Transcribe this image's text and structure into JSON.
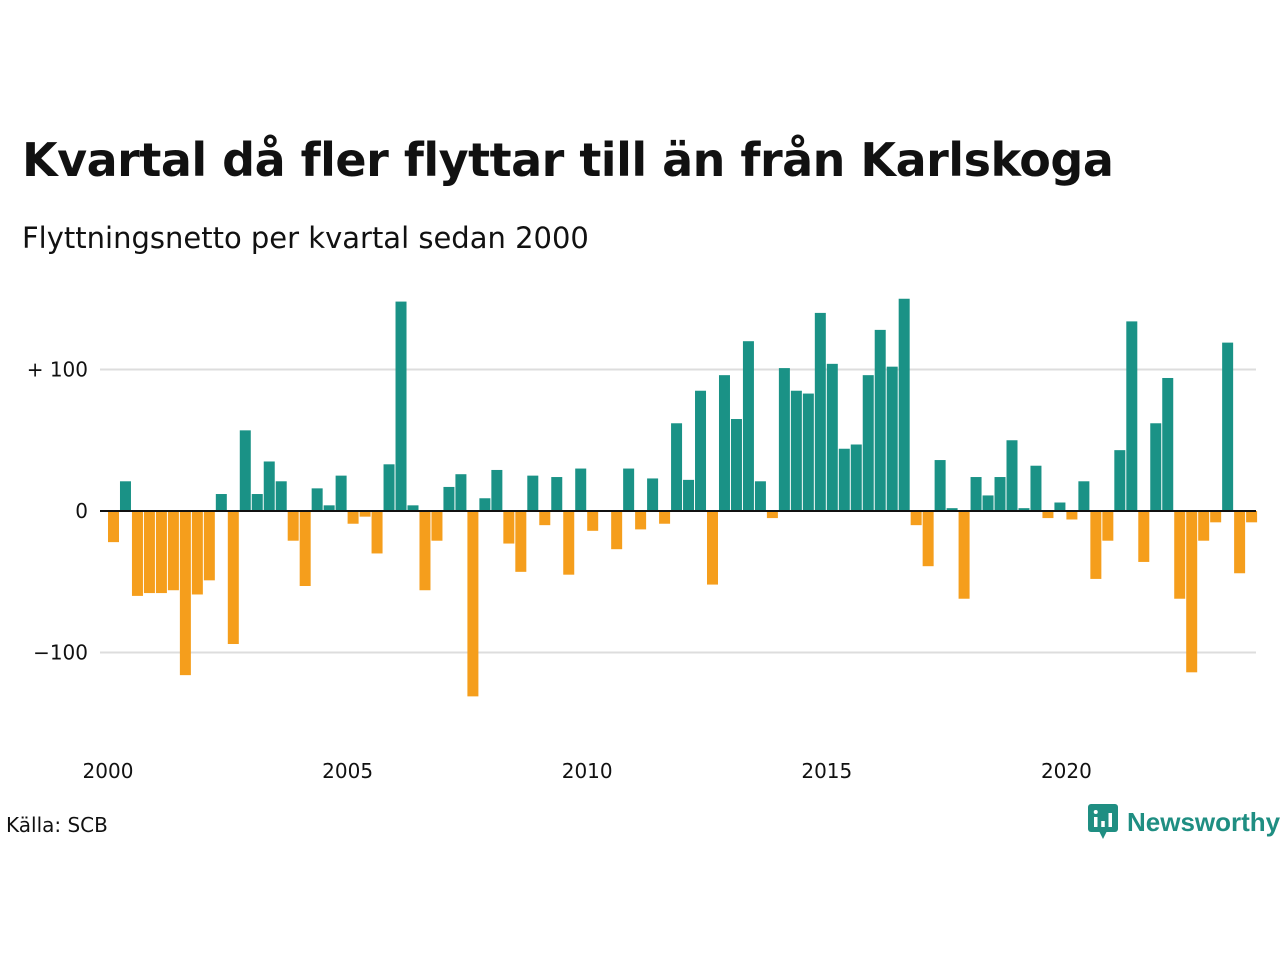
{
  "title": "Kvartal då fler flyttar till än från Karlskoga",
  "subtitle": "Flyttningsnetto per kvartal sedan 2000",
  "source": "Källa: SCB",
  "brand": {
    "name": "Newsworthy",
    "logo_icon": "newsworthy-bar-chart-speech-bubble-icon"
  },
  "colors": {
    "positive": "#1a9286",
    "negative": "#f59e1c",
    "grid": "#dddddd",
    "zero_line": "#111111",
    "brand": "#1f8e82"
  },
  "chart_data": {
    "type": "bar",
    "title": "Kvartal då fler flyttar till än från Karlskoga",
    "subtitle": "Flyttningsnetto per kvartal sedan 2000",
    "xlabel": "",
    "ylabel": "",
    "x_tick_labels": [
      "2000",
      "2005",
      "2010",
      "2015",
      "2020"
    ],
    "y_ticks": [
      {
        "value": 100,
        "label": "+ 100"
      },
      {
        "value": 0,
        "label": "0"
      },
      {
        "value": -100,
        "label": "−100"
      }
    ],
    "ylim": [
      -155,
      150
    ],
    "grid": true,
    "legend": "none",
    "start": "2000 Q1",
    "categories": [
      "2000 Q1",
      "2000 Q2",
      "2000 Q3",
      "2000 Q4",
      "2001 Q1",
      "2001 Q2",
      "2001 Q3",
      "2001 Q4",
      "2002 Q1",
      "2002 Q2",
      "2002 Q3",
      "2002 Q4",
      "2003 Q1",
      "2003 Q2",
      "2003 Q3",
      "2003 Q4",
      "2004 Q1",
      "2004 Q2",
      "2004 Q3",
      "2004 Q4",
      "2005 Q1",
      "2005 Q2",
      "2005 Q3",
      "2005 Q4",
      "2006 Q1",
      "2006 Q2",
      "2006 Q3",
      "2006 Q4",
      "2007 Q1",
      "2007 Q2",
      "2007 Q3",
      "2007 Q4",
      "2008 Q1",
      "2008 Q2",
      "2008 Q3",
      "2008 Q4",
      "2009 Q1",
      "2009 Q2",
      "2009 Q3",
      "2009 Q4",
      "2010 Q1",
      "2010 Q2",
      "2010 Q3",
      "2010 Q4",
      "2011 Q1",
      "2011 Q2",
      "2011 Q3",
      "2011 Q4",
      "2012 Q1",
      "2012 Q2",
      "2012 Q3",
      "2012 Q4",
      "2013 Q1",
      "2013 Q2",
      "2013 Q3",
      "2013 Q4",
      "2014 Q1",
      "2014 Q2",
      "2014 Q3",
      "2014 Q4",
      "2015 Q1",
      "2015 Q2",
      "2015 Q3",
      "2015 Q4",
      "2016 Q1",
      "2016 Q2",
      "2016 Q3",
      "2016 Q4",
      "2017 Q1",
      "2017 Q2",
      "2017 Q3",
      "2017 Q4",
      "2018 Q1",
      "2018 Q2",
      "2018 Q3",
      "2018 Q4",
      "2019 Q1",
      "2019 Q2",
      "2019 Q3",
      "2019 Q4",
      "2020 Q1",
      "2020 Q2",
      "2020 Q3",
      "2020 Q4",
      "2021 Q1",
      "2021 Q2",
      "2021 Q3",
      "2021 Q4",
      "2022 Q1",
      "2022 Q2",
      "2022 Q3",
      "2022 Q4",
      "2023 Q1",
      "2023 Q2",
      "2023 Q3",
      "2023 Q4"
    ],
    "values": [
      -22,
      21,
      -60,
      -58,
      -58,
      -56,
      -116,
      -59,
      -49,
      12,
      -94,
      57,
      12,
      35,
      21,
      -21,
      -53,
      16,
      4,
      25,
      -9,
      -4,
      -30,
      33,
      148,
      4,
      -56,
      -21,
      17,
      26,
      -131,
      9,
      29,
      -23,
      -43,
      25,
      -10,
      24,
      -45,
      30,
      -14,
      0,
      -27,
      30,
      -13,
      23,
      -9,
      62,
      22,
      85,
      -52,
      96,
      65,
      120,
      21,
      -5,
      101,
      85,
      83,
      140,
      104,
      44,
      47,
      96,
      128,
      102,
      150,
      -10,
      -39,
      36,
      2,
      -62,
      24,
      11,
      24,
      50,
      2,
      32,
      -5,
      6,
      -6,
      21,
      -48,
      -21,
      43,
      134,
      -36,
      62,
      94,
      -62,
      -114,
      -21,
      -8,
      119,
      -44,
      -8
    ]
  }
}
